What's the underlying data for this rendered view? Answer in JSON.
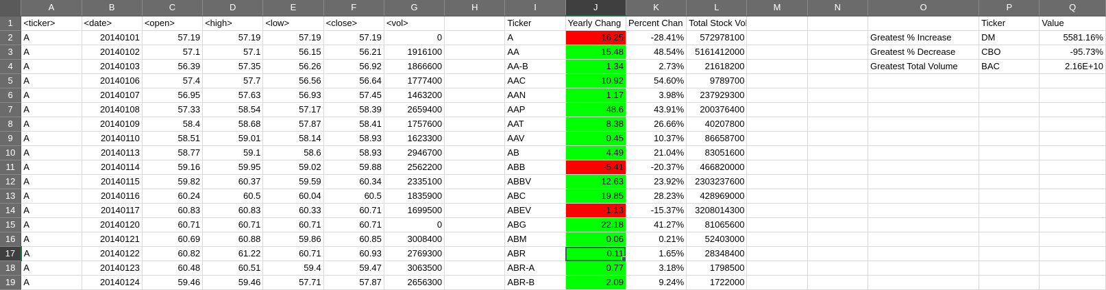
{
  "columns": [
    "A",
    "B",
    "C",
    "D",
    "E",
    "F",
    "G",
    "H",
    "I",
    "J",
    "K",
    "L",
    "M",
    "N",
    "O",
    "P",
    "Q"
  ],
  "active": {
    "column": "J",
    "row": 17
  },
  "colors": {
    "positive": "#00ff00",
    "negative": "#ff0000",
    "selection": "#1e7145",
    "header_bg": "#6b6b6b"
  },
  "header_row": {
    "A": "<ticker>",
    "B": "<date>",
    "C": "<open>",
    "D": "<high>",
    "E": "<low>",
    "F": "<close>",
    "G": "<vol>",
    "I": "Ticker",
    "J": "Yearly Chang",
    "K": "Percent Chan",
    "L": "Total Stock Volume",
    "P": "Ticker",
    "Q": "Value"
  },
  "raw_rows": [
    [
      "A",
      "20140101",
      "57.19",
      "57.19",
      "57.19",
      "57.19",
      "0"
    ],
    [
      "A",
      "20140102",
      "57.1",
      "57.1",
      "56.15",
      "56.21",
      "1916100"
    ],
    [
      "A",
      "20140103",
      "56.39",
      "57.35",
      "56.26",
      "56.92",
      "1866600"
    ],
    [
      "A",
      "20140106",
      "57.4",
      "57.7",
      "56.56",
      "56.64",
      "1777400"
    ],
    [
      "A",
      "20140107",
      "56.95",
      "57.63",
      "56.93",
      "57.45",
      "1463200"
    ],
    [
      "A",
      "20140108",
      "57.33",
      "58.54",
      "57.17",
      "58.39",
      "2659400"
    ],
    [
      "A",
      "20140109",
      "58.4",
      "58.68",
      "57.87",
      "58.41",
      "1757600"
    ],
    [
      "A",
      "20140110",
      "58.51",
      "59.01",
      "58.14",
      "58.93",
      "1623300"
    ],
    [
      "A",
      "20140113",
      "58.77",
      "59.1",
      "58.6",
      "58.93",
      "2946700"
    ],
    [
      "A",
      "20140114",
      "59.16",
      "59.95",
      "59.02",
      "59.88",
      "2562200"
    ],
    [
      "A",
      "20140115",
      "59.82",
      "60.37",
      "59.59",
      "60.34",
      "2335100"
    ],
    [
      "A",
      "20140116",
      "60.24",
      "60.5",
      "60.04",
      "60.5",
      "1835900"
    ],
    [
      "A",
      "20140117",
      "60.83",
      "60.83",
      "60.33",
      "60.71",
      "1699500"
    ],
    [
      "A",
      "20140120",
      "60.71",
      "60.71",
      "60.71",
      "60.71",
      "0"
    ],
    [
      "A",
      "20140121",
      "60.69",
      "60.88",
      "59.86",
      "60.85",
      "3008400"
    ],
    [
      "A",
      "20140122",
      "60.82",
      "61.22",
      "60.71",
      "60.93",
      "2769300"
    ],
    [
      "A",
      "20140123",
      "60.48",
      "60.51",
      "59.4",
      "59.47",
      "3063500"
    ],
    [
      "A",
      "20140124",
      "59.46",
      "59.46",
      "57.71",
      "57.87",
      "2656300"
    ]
  ],
  "summary_rows": [
    [
      "A",
      "-16.25",
      "-28.41%",
      "572978100"
    ],
    [
      "AA",
      "15.48",
      "48.54%",
      "5161412000"
    ],
    [
      "AA-B",
      "1.34",
      "2.73%",
      "21618200"
    ],
    [
      "AAC",
      "10.92",
      "54.60%",
      "9789700"
    ],
    [
      "AAN",
      "1.17",
      "3.98%",
      "237929300"
    ],
    [
      "AAP",
      "48.6",
      "43.91%",
      "200376400"
    ],
    [
      "AAT",
      "8.38",
      "26.66%",
      "40207800"
    ],
    [
      "AAV",
      "0.45",
      "10.37%",
      "86658700"
    ],
    [
      "AB",
      "4.49",
      "21.04%",
      "83051600"
    ],
    [
      "ABB",
      "-5.41",
      "-20.37%",
      "466820000"
    ],
    [
      "ABBV",
      "12.63",
      "23.92%",
      "2303237600"
    ],
    [
      "ABC",
      "19.85",
      "28.23%",
      "428969000"
    ],
    [
      "ABEV",
      "-1.13",
      "-15.37%",
      "3208014300"
    ],
    [
      "ABG",
      "22.18",
      "41.27%",
      "81065600"
    ],
    [
      "ABM",
      "0.06",
      "0.21%",
      "52403000"
    ],
    [
      "ABR",
      "0.11",
      "1.65%",
      "28348400"
    ],
    [
      "ABR-A",
      "0.77",
      "3.18%",
      "1798500"
    ],
    [
      "ABR-B",
      "2.09",
      "9.24%",
      "1722000"
    ]
  ],
  "greatest": [
    {
      "label": "Greatest % Increase",
      "ticker": "DM",
      "value": "5581.16%"
    },
    {
      "label": "Greatest % Decrease",
      "ticker": "CBO",
      "value": "-95.73%"
    },
    {
      "label": "Greatest Total Volume",
      "ticker": "BAC",
      "value": "2.16E+10"
    }
  ]
}
